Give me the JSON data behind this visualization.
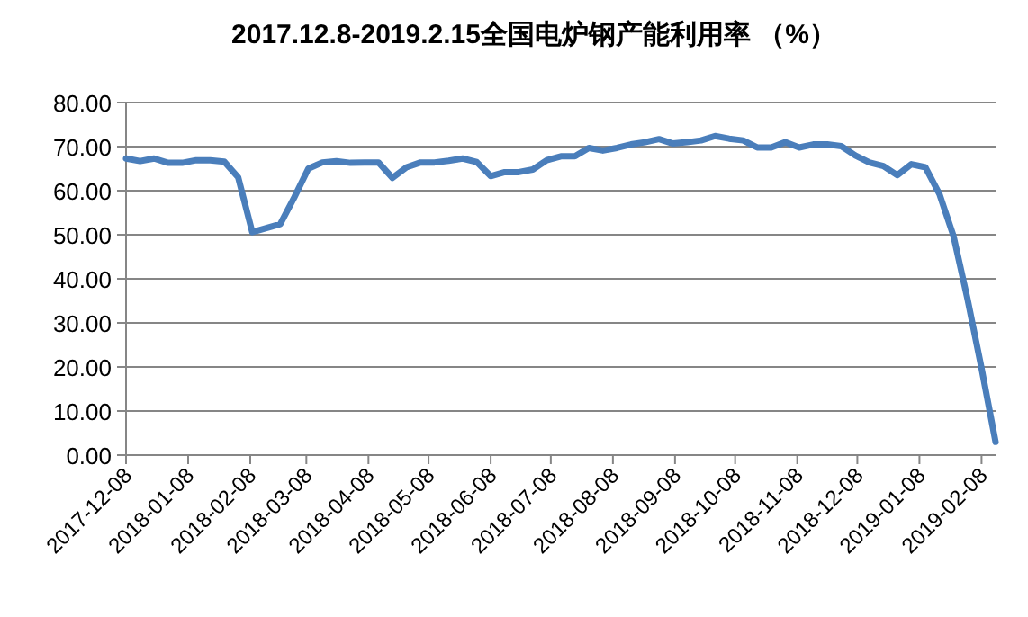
{
  "chart_data": {
    "type": "line",
    "title": "2017.12.8-2019.2.15全国电炉钢产能利用率 （%）",
    "x": [
      "2017-12-08",
      "2017-12-15",
      "2017-12-22",
      "2017-12-29",
      "2018-01-05",
      "2018-01-12",
      "2018-01-19",
      "2018-01-26",
      "2018-02-02",
      "2018-02-09",
      "2018-02-16",
      "2018-02-23",
      "2018-03-02",
      "2018-03-09",
      "2018-03-16",
      "2018-03-23",
      "2018-03-30",
      "2018-04-06",
      "2018-04-13",
      "2018-04-20",
      "2018-04-27",
      "2018-05-04",
      "2018-05-11",
      "2018-05-18",
      "2018-05-25",
      "2018-06-01",
      "2018-06-08",
      "2018-06-15",
      "2018-06-22",
      "2018-06-29",
      "2018-07-06",
      "2018-07-13",
      "2018-07-20",
      "2018-07-27",
      "2018-08-03",
      "2018-08-10",
      "2018-08-17",
      "2018-08-24",
      "2018-08-31",
      "2018-09-07",
      "2018-09-14",
      "2018-09-21",
      "2018-09-28",
      "2018-10-05",
      "2018-10-12",
      "2018-10-19",
      "2018-10-26",
      "2018-11-02",
      "2018-11-09",
      "2018-11-16",
      "2018-11-23",
      "2018-11-30",
      "2018-12-07",
      "2018-12-14",
      "2018-12-21",
      "2018-12-28",
      "2019-01-04",
      "2019-01-11",
      "2019-01-18",
      "2019-01-25",
      "2019-02-01",
      "2019-02-08",
      "2019-02-15"
    ],
    "series": [
      {
        "color": "#4a7ebb",
        "values": [
          67.3,
          66.7,
          67.3,
          66.3,
          66.3,
          66.9,
          66.9,
          66.6,
          63.0,
          50.6,
          51.5,
          52.4,
          58.5,
          65.0,
          66.4,
          66.7,
          66.3,
          66.4,
          66.4,
          62.9,
          65.3,
          66.4,
          66.4,
          66.8,
          67.3,
          66.5,
          63.3,
          64.2,
          64.2,
          64.8,
          66.9,
          67.8,
          67.8,
          69.7,
          69.1,
          69.7,
          70.5,
          71.0,
          71.7,
          70.7,
          71.0,
          71.4,
          72.4,
          71.8,
          71.4,
          69.8,
          69.8,
          71.0,
          69.8,
          70.5,
          70.5,
          70.1,
          68.0,
          66.4,
          65.6,
          63.5,
          66.0,
          65.3,
          59.2,
          49.7,
          35.4,
          19.7,
          3.0
        ]
      }
    ],
    "xlim": [
      "2017-12-08",
      "2019-02-15"
    ],
    "xticks": [
      "2017-12-08",
      "2018-01-08",
      "2018-02-08",
      "2018-03-08",
      "2018-04-08",
      "2018-05-08",
      "2018-06-08",
      "2018-07-08",
      "2018-08-08",
      "2018-09-08",
      "2018-10-08",
      "2018-11-08",
      "2018-12-08",
      "2019-01-08",
      "2019-02-08"
    ],
    "ylim": [
      0,
      80
    ],
    "yticks": [
      {
        "value": 0,
        "label": "0.00"
      },
      {
        "value": 10,
        "label": "10.00"
      },
      {
        "value": 20,
        "label": "20.00"
      },
      {
        "value": 30,
        "label": "30.00"
      },
      {
        "value": 40,
        "label": "40.00"
      },
      {
        "value": 50,
        "label": "50.00"
      },
      {
        "value": 60,
        "label": "60.00"
      },
      {
        "value": 70,
        "label": "70.00"
      },
      {
        "value": 80,
        "label": "80.00"
      }
    ],
    "grid": "y",
    "marker": "none",
    "line_style": "solid"
  }
}
